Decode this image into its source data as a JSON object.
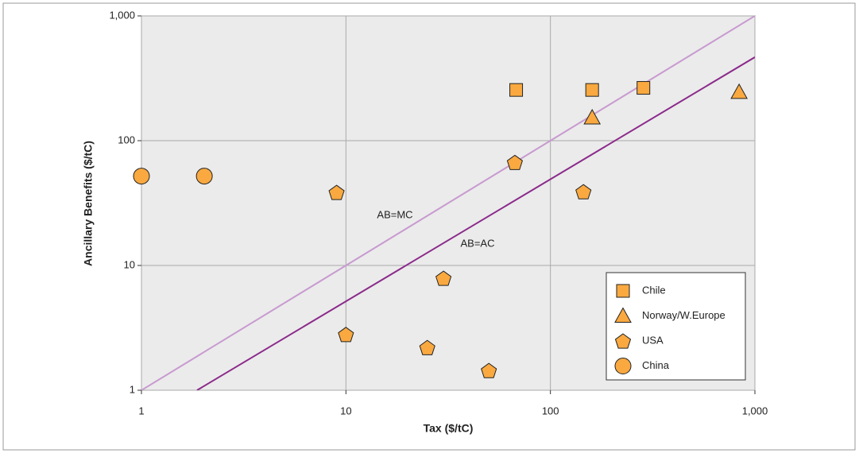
{
  "chart_data": {
    "type": "scatter",
    "x_label": "Tax ($/tC)",
    "y_label": "Ancillary Benefits ($/tC)",
    "xscale": "log",
    "yscale": "log",
    "xlim": [
      1,
      1000
    ],
    "ylim": [
      1,
      1000
    ],
    "xticks": [
      1,
      10,
      100,
      {
        "value": 1000,
        "label": "1,000"
      }
    ],
    "yticks": [
      1,
      10,
      100,
      {
        "value": 1000,
        "label": "1,000"
      }
    ],
    "grid": true,
    "legend_position": "lower right",
    "series": [
      {
        "name": "Chile",
        "marker": "square",
        "color": "#f9a940",
        "x": [
          68,
          160,
          285
        ],
        "y": [
          255,
          255,
          265
        ]
      },
      {
        "name": "Norway/W.Europe",
        "marker": "triangle",
        "color": "#f9a940",
        "x": [
          160,
          837
        ],
        "y": [
          153,
          245
        ]
      },
      {
        "name": "USA",
        "marker": "pentagon",
        "color": "#f9a940",
        "x": [
          9,
          67,
          145,
          30,
          10,
          25,
          50
        ],
        "y": [
          38.5,
          67,
          39,
          7.9,
          2.8,
          2.2,
          1.44
        ]
      },
      {
        "name": "China",
        "marker": "circle",
        "color": "#f9a940",
        "x": [
          1,
          2.03
        ],
        "y": [
          52,
          52
        ]
      }
    ],
    "lines": [
      {
        "label": "AB=MC",
        "color": "#c89ad0",
        "x": [
          1,
          1000
        ],
        "y": [
          1,
          1000
        ]
      },
      {
        "label": "AB=AC",
        "color": "#8b2a8b",
        "x": [
          1.87,
          1000
        ],
        "y": [
          1,
          467
        ]
      }
    ]
  }
}
